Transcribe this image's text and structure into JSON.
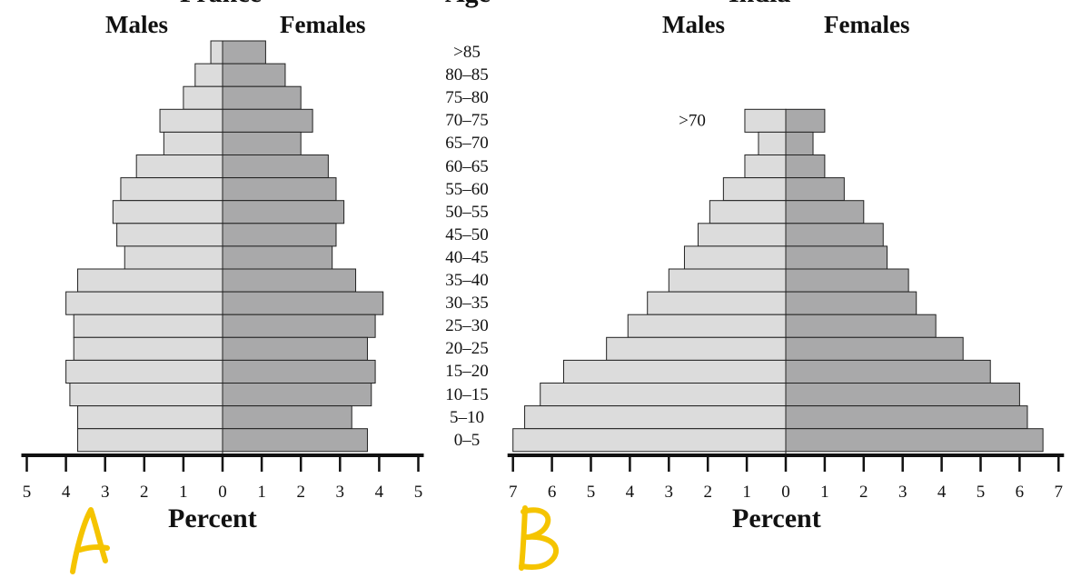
{
  "titles": {
    "france_cut": "France",
    "age_cut": "Age",
    "india_cut": "India"
  },
  "headers": {
    "a_males": "Males",
    "a_females": "Females",
    "b_males": "Males",
    "b_females": "Females"
  },
  "age_labels": [
    ">85",
    "80–85",
    "75–80",
    "70–75",
    "65–70",
    "60–65",
    "55–60",
    "50–55",
    "45–50",
    "40–45",
    "35–40",
    "30–35",
    "25–30",
    "20–25",
    "15–20",
    "10–15",
    "5–10",
    "0–5"
  ],
  "panel_marks": {
    "a": "A",
    "b": "B",
    "mark_color": "#f5c400"
  },
  "colors": {
    "male_bar": "#dcdcdc",
    "female_bar": "#a9a9aa",
    "outline": "#222222"
  },
  "chart_data": [
    {
      "type": "bar",
      "orientation": "horizontal",
      "title": "France",
      "xlabel": "Percent",
      "ylabel": "Age",
      "xlim": [
        -5,
        5
      ],
      "x_ticks": [
        "5",
        "4",
        "3",
        "2",
        "1",
        "0",
        "1",
        "2",
        "3",
        "4",
        "5"
      ],
      "categories": [
        ">85",
        "80–85",
        "75–80",
        "70–75",
        "65–70",
        "60–65",
        "55–60",
        "50–55",
        "45–50",
        "40–45",
        "35–40",
        "30–35",
        "25–30",
        "20–25",
        "15–20",
        "10–15",
        "5–10",
        "0–5"
      ],
      "series": [
        {
          "name": "Males",
          "values": [
            0.3,
            0.7,
            1.0,
            1.6,
            1.5,
            2.2,
            2.6,
            2.8,
            2.7,
            2.5,
            3.7,
            4.0,
            3.8,
            3.8,
            4.0,
            3.9,
            3.7,
            3.7
          ]
        },
        {
          "name": "Females",
          "values": [
            1.1,
            1.6,
            2.0,
            2.3,
            2.0,
            2.7,
            2.9,
            3.1,
            2.9,
            2.8,
            3.4,
            4.1,
            3.9,
            3.7,
            3.9,
            3.8,
            3.3,
            3.7
          ]
        }
      ]
    },
    {
      "type": "bar",
      "orientation": "horizontal",
      "title": "India",
      "xlabel": "Percent",
      "xlim": [
        -7,
        7
      ],
      "x_ticks": [
        "7",
        "6",
        "5",
        "4",
        "3",
        "2",
        "1",
        "0",
        "1",
        "2",
        "3",
        "4",
        "5",
        "6",
        "7"
      ],
      "categories": [
        ">70",
        "65–70",
        "60–65",
        "55–60",
        "50–55",
        "45–50",
        "40–45",
        "35–40",
        "30–35",
        "25–30",
        "20–25",
        "15–20",
        "10–15",
        "5–10",
        "0–5"
      ],
      "category_annotation": ">70",
      "series": [
        {
          "name": "Males",
          "values": [
            1.05,
            0.7,
            1.05,
            1.6,
            1.95,
            2.25,
            2.6,
            3.0,
            3.55,
            4.05,
            4.6,
            5.7,
            6.3,
            6.7,
            7.0
          ]
        },
        {
          "name": "Females",
          "values": [
            1.0,
            0.7,
            1.0,
            1.5,
            2.0,
            2.5,
            2.6,
            3.15,
            3.35,
            3.85,
            4.55,
            5.25,
            6.0,
            6.2,
            6.6
          ]
        }
      ]
    }
  ]
}
